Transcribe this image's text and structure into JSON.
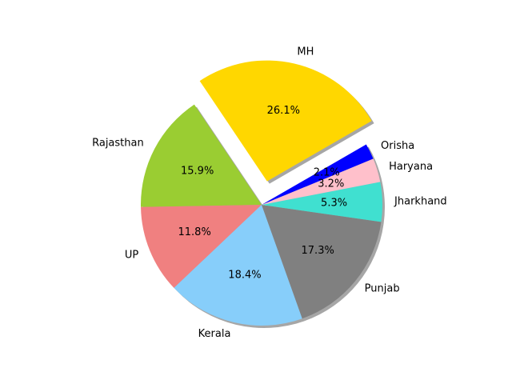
{
  "chart_data": {
    "type": "pie",
    "title": "",
    "categories": [
      "MH",
      "Rajasthan",
      "UP",
      "Kerala",
      "Punjab",
      "Jharkhand",
      "Haryana",
      "Orisha"
    ],
    "values": [
      26.1,
      15.9,
      11.8,
      18.4,
      17.3,
      5.3,
      3.2,
      2.1
    ],
    "value_labels": [
      "26.1%",
      "15.9%",
      "11.8%",
      "18.4%",
      "17.3%",
      "5.3%",
      "3.2%",
      "2.1%"
    ],
    "colors": [
      "#ffd700",
      "#9acd32",
      "#f08080",
      "#87cefa",
      "#808080",
      "#40e0d0",
      "#ffc0cb",
      "#0000ff"
    ],
    "explode": [
      0.2,
      0,
      0,
      0,
      0,
      0,
      0,
      0
    ],
    "start_angle_deg": 30,
    "direction": "counterclockwise",
    "shadow": true,
    "legend": "none"
  }
}
